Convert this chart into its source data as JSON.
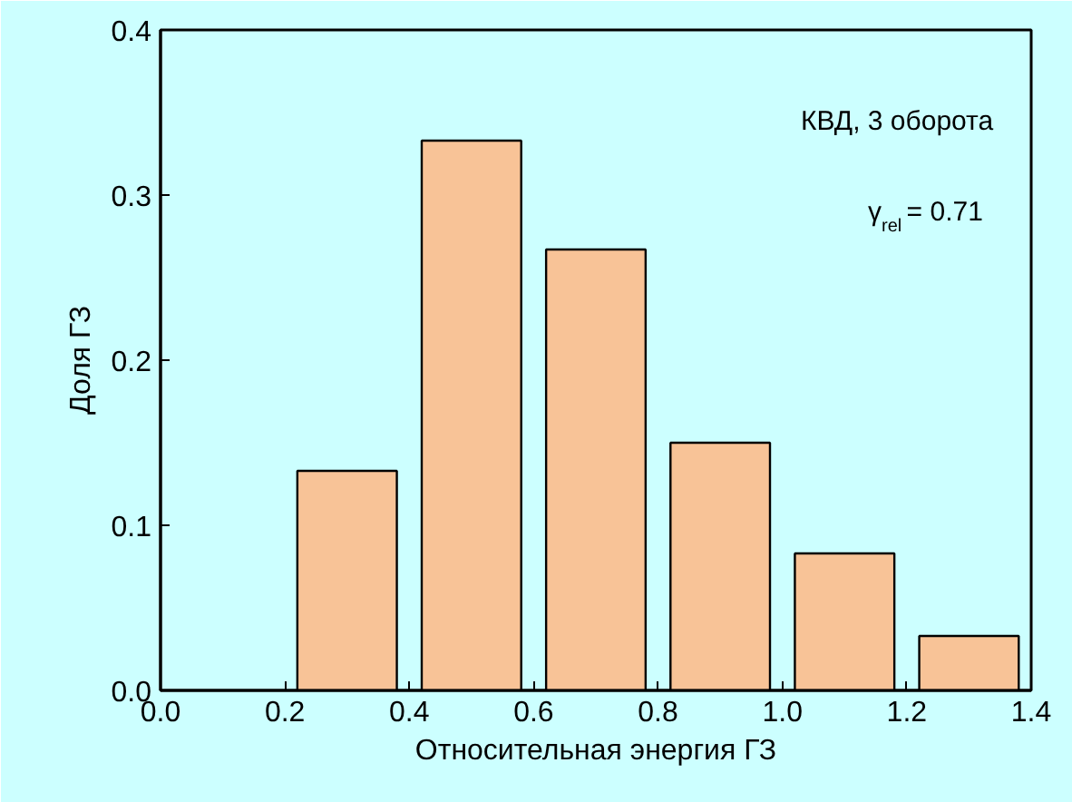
{
  "chart_data": {
    "type": "bar",
    "xlabel": "Относительная энергия ГЗ",
    "ylabel": "Доля ГЗ",
    "x": [
      0.3,
      0.5,
      0.7,
      0.9,
      1.1,
      1.3
    ],
    "values": [
      0.133,
      0.333,
      0.267,
      0.15,
      0.083,
      0.033
    ],
    "color": "#f8c397",
    "xlim": [
      0,
      1.4
    ],
    "xticks": [
      {
        "value": 0,
        "label": "0.0"
      },
      0.2,
      0.4,
      0.6,
      0.8,
      {
        "value": 1,
        "label": "1.0"
      },
      1.2,
      1.4
    ],
    "ylim": [
      0,
      0.4
    ],
    "yticks": [
      {
        "value": 0,
        "label": "0.0"
      },
      0.1,
      0.2,
      0.3,
      0.4
    ],
    "annotations": [
      "КВД, 3 оборота",
      "γ$_{rel}$= 0.71"
    ]
  }
}
